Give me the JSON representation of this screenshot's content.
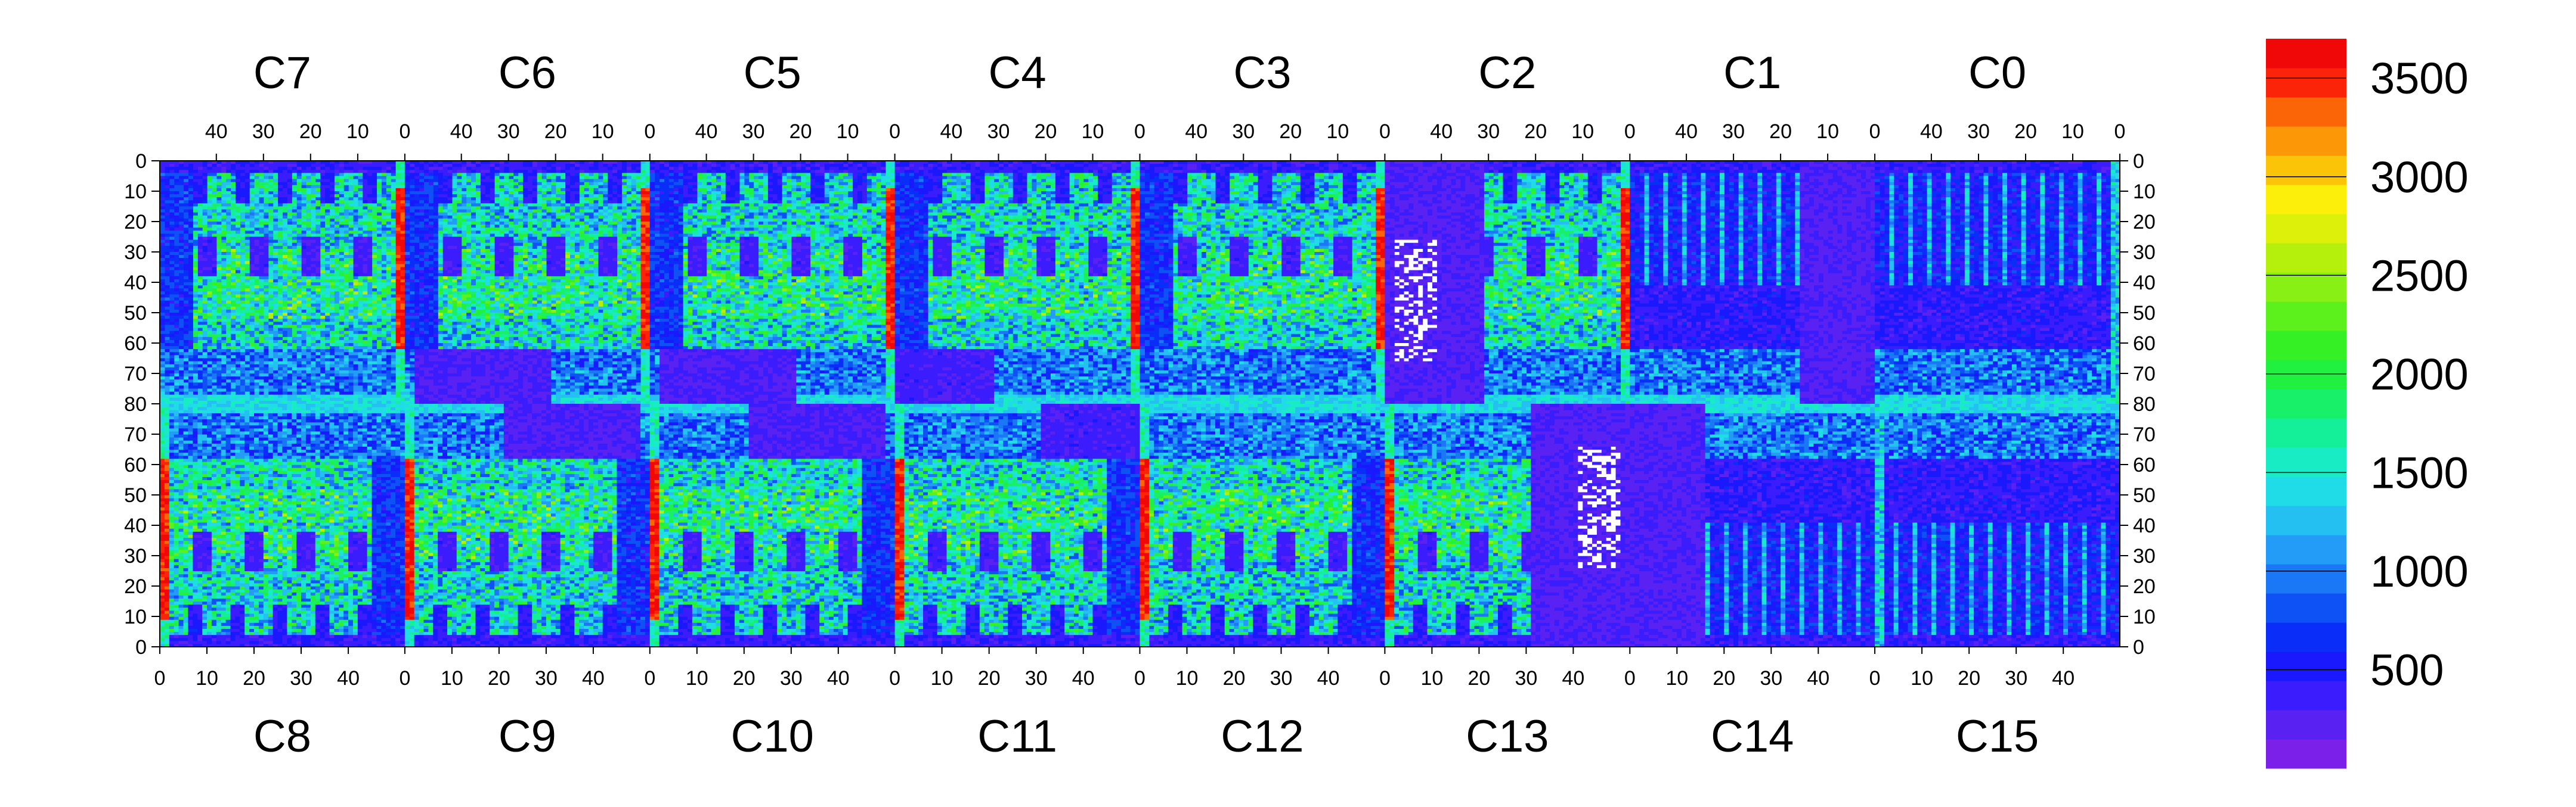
{
  "chart_data": {
    "type": "heatmap",
    "title": "",
    "xlabel": "",
    "ylabel": "",
    "top_chips": [
      "C7",
      "C6",
      "C5",
      "C4",
      "C3",
      "C2",
      "C1",
      "C0"
    ],
    "bottom_chips": [
      "C8",
      "C9",
      "C10",
      "C11",
      "C12",
      "C13",
      "C14",
      "C15"
    ],
    "top_ticks": [
      "40",
      "30",
      "20",
      "10",
      "0"
    ],
    "bottom_ticks": [
      "0",
      "10",
      "20",
      "30",
      "40"
    ],
    "left_ticks": [
      "0",
      "10",
      "20",
      "30",
      "40",
      "50",
      "60",
      "70",
      "80",
      "70",
      "60",
      "50",
      "40",
      "30",
      "20",
      "10",
      "0"
    ],
    "right_ticks": [
      "0",
      "10",
      "20",
      "30",
      "40",
      "50",
      "60",
      "70",
      "80",
      "70",
      "60",
      "50",
      "40",
      "30",
      "20",
      "10",
      "0"
    ],
    "chip_columns": 52,
    "rows_per_half": 80,
    "colorbar": {
      "range": [
        0,
        3700
      ],
      "tick_labels": [
        "500",
        "1000",
        "1500",
        "2000",
        "2500",
        "3000",
        "3500"
      ],
      "tick_values": [
        500,
        1000,
        1500,
        2000,
        2500,
        3000,
        3500
      ],
      "colors": [
        "#7a20e8",
        "#5a22f2",
        "#3a1cfc",
        "#1a18fc",
        "#0a2ef8",
        "#0e52f6",
        "#1a78f6",
        "#229cf6",
        "#24c0f2",
        "#20dce6",
        "#18ecc4",
        "#14f09a",
        "#18f06a",
        "#20f040",
        "#34f024",
        "#5cf01c",
        "#88f014",
        "#b4f00c",
        "#dcf00a",
        "#fcf00a",
        "#fcc408",
        "#fc9808",
        "#fc6408",
        "#fc2408",
        "#f00808"
      ]
    },
    "features": {
      "background_level": 250,
      "chip_body_level": 1450,
      "chip_edge_level": 3300,
      "central_band_level": 1200,
      "quiet_region_level": 150
    }
  }
}
